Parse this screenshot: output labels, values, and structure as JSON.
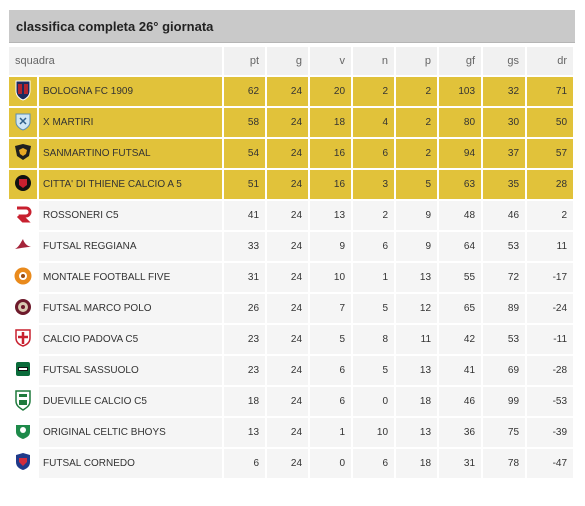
{
  "title": "classifica completa 26° giornata",
  "columns": {
    "team": "squadra",
    "pt": "pt",
    "g": "g",
    "v": "v",
    "n": "n",
    "p": "p",
    "gf": "gf",
    "gs": "gs",
    "dr": "dr"
  },
  "colors": {
    "highlight": "#e1c23a",
    "header": "#c9c9c9",
    "row": "#f5f5f5"
  },
  "rows": [
    {
      "team": "BOLOGNA FC 1909",
      "pt": "62",
      "g": "24",
      "v": "20",
      "n": "2",
      "p": "2",
      "gf": "103",
      "gs": "32",
      "dr": "71",
      "highlight": true,
      "logo": "bologna-crest-icon"
    },
    {
      "team": "X MARTIRI",
      "pt": "58",
      "g": "24",
      "v": "18",
      "n": "4",
      "p": "2",
      "gf": "80",
      "gs": "30",
      "dr": "50",
      "highlight": true,
      "logo": "x-martiri-crest-icon"
    },
    {
      "team": "SANMARTINO FUTSAL",
      "pt": "54",
      "g": "24",
      "v": "16",
      "n": "6",
      "p": "2",
      "gf": "94",
      "gs": "37",
      "dr": "57",
      "highlight": true,
      "logo": "sanmartino-crest-icon"
    },
    {
      "team": "CITTA' DI THIENE CALCIO A 5",
      "pt": "51",
      "g": "24",
      "v": "16",
      "n": "3",
      "p": "5",
      "gf": "63",
      "gs": "35",
      "dr": "28",
      "highlight": true,
      "logo": "thiene-crest-icon"
    },
    {
      "team": "ROSSONERI C5",
      "pt": "41",
      "g": "24",
      "v": "13",
      "n": "2",
      "p": "9",
      "gf": "48",
      "gs": "46",
      "dr": "2",
      "highlight": false,
      "logo": "rossoneri-crest-icon"
    },
    {
      "team": "FUTSAL REGGIANA",
      "pt": "33",
      "g": "24",
      "v": "9",
      "n": "6",
      "p": "9",
      "gf": "64",
      "gs": "53",
      "dr": "11",
      "highlight": false,
      "logo": "reggiana-crest-icon"
    },
    {
      "team": "MONTALE FOOTBALL FIVE",
      "pt": "31",
      "g": "24",
      "v": "10",
      "n": "1",
      "p": "13",
      "gf": "55",
      "gs": "72",
      "dr": "-17",
      "highlight": false,
      "logo": "montale-crest-icon"
    },
    {
      "team": "FUTSAL MARCO POLO",
      "pt": "26",
      "g": "24",
      "v": "7",
      "n": "5",
      "p": "12",
      "gf": "65",
      "gs": "89",
      "dr": "-24",
      "highlight": false,
      "logo": "marco-polo-crest-icon"
    },
    {
      "team": "CALCIO PADOVA C5",
      "pt": "23",
      "g": "24",
      "v": "5",
      "n": "8",
      "p": "11",
      "gf": "42",
      "gs": "53",
      "dr": "-11",
      "highlight": false,
      "logo": "padova-crest-icon"
    },
    {
      "team": "FUTSAL SASSUOLO",
      "pt": "23",
      "g": "24",
      "v": "6",
      "n": "5",
      "p": "13",
      "gf": "41",
      "gs": "69",
      "dr": "-28",
      "highlight": false,
      "logo": "sassuolo-crest-icon"
    },
    {
      "team": "DUEVILLE CALCIO C5",
      "pt": "18",
      "g": "24",
      "v": "6",
      "n": "0",
      "p": "18",
      "gf": "46",
      "gs": "99",
      "dr": "-53",
      "highlight": false,
      "logo": "dueville-crest-icon"
    },
    {
      "team": "ORIGINAL CELTIC BHOYS",
      "pt": "13",
      "g": "24",
      "v": "1",
      "n": "10",
      "p": "13",
      "gf": "36",
      "gs": "75",
      "dr": "-39",
      "highlight": false,
      "logo": "celtic-bhoys-crest-icon"
    },
    {
      "team": "FUTSAL CORNEDO",
      "pt": "6",
      "g": "24",
      "v": "0",
      "n": "6",
      "p": "18",
      "gf": "31",
      "gs": "78",
      "dr": "-47",
      "highlight": false,
      "logo": "cornedo-crest-icon"
    }
  ]
}
